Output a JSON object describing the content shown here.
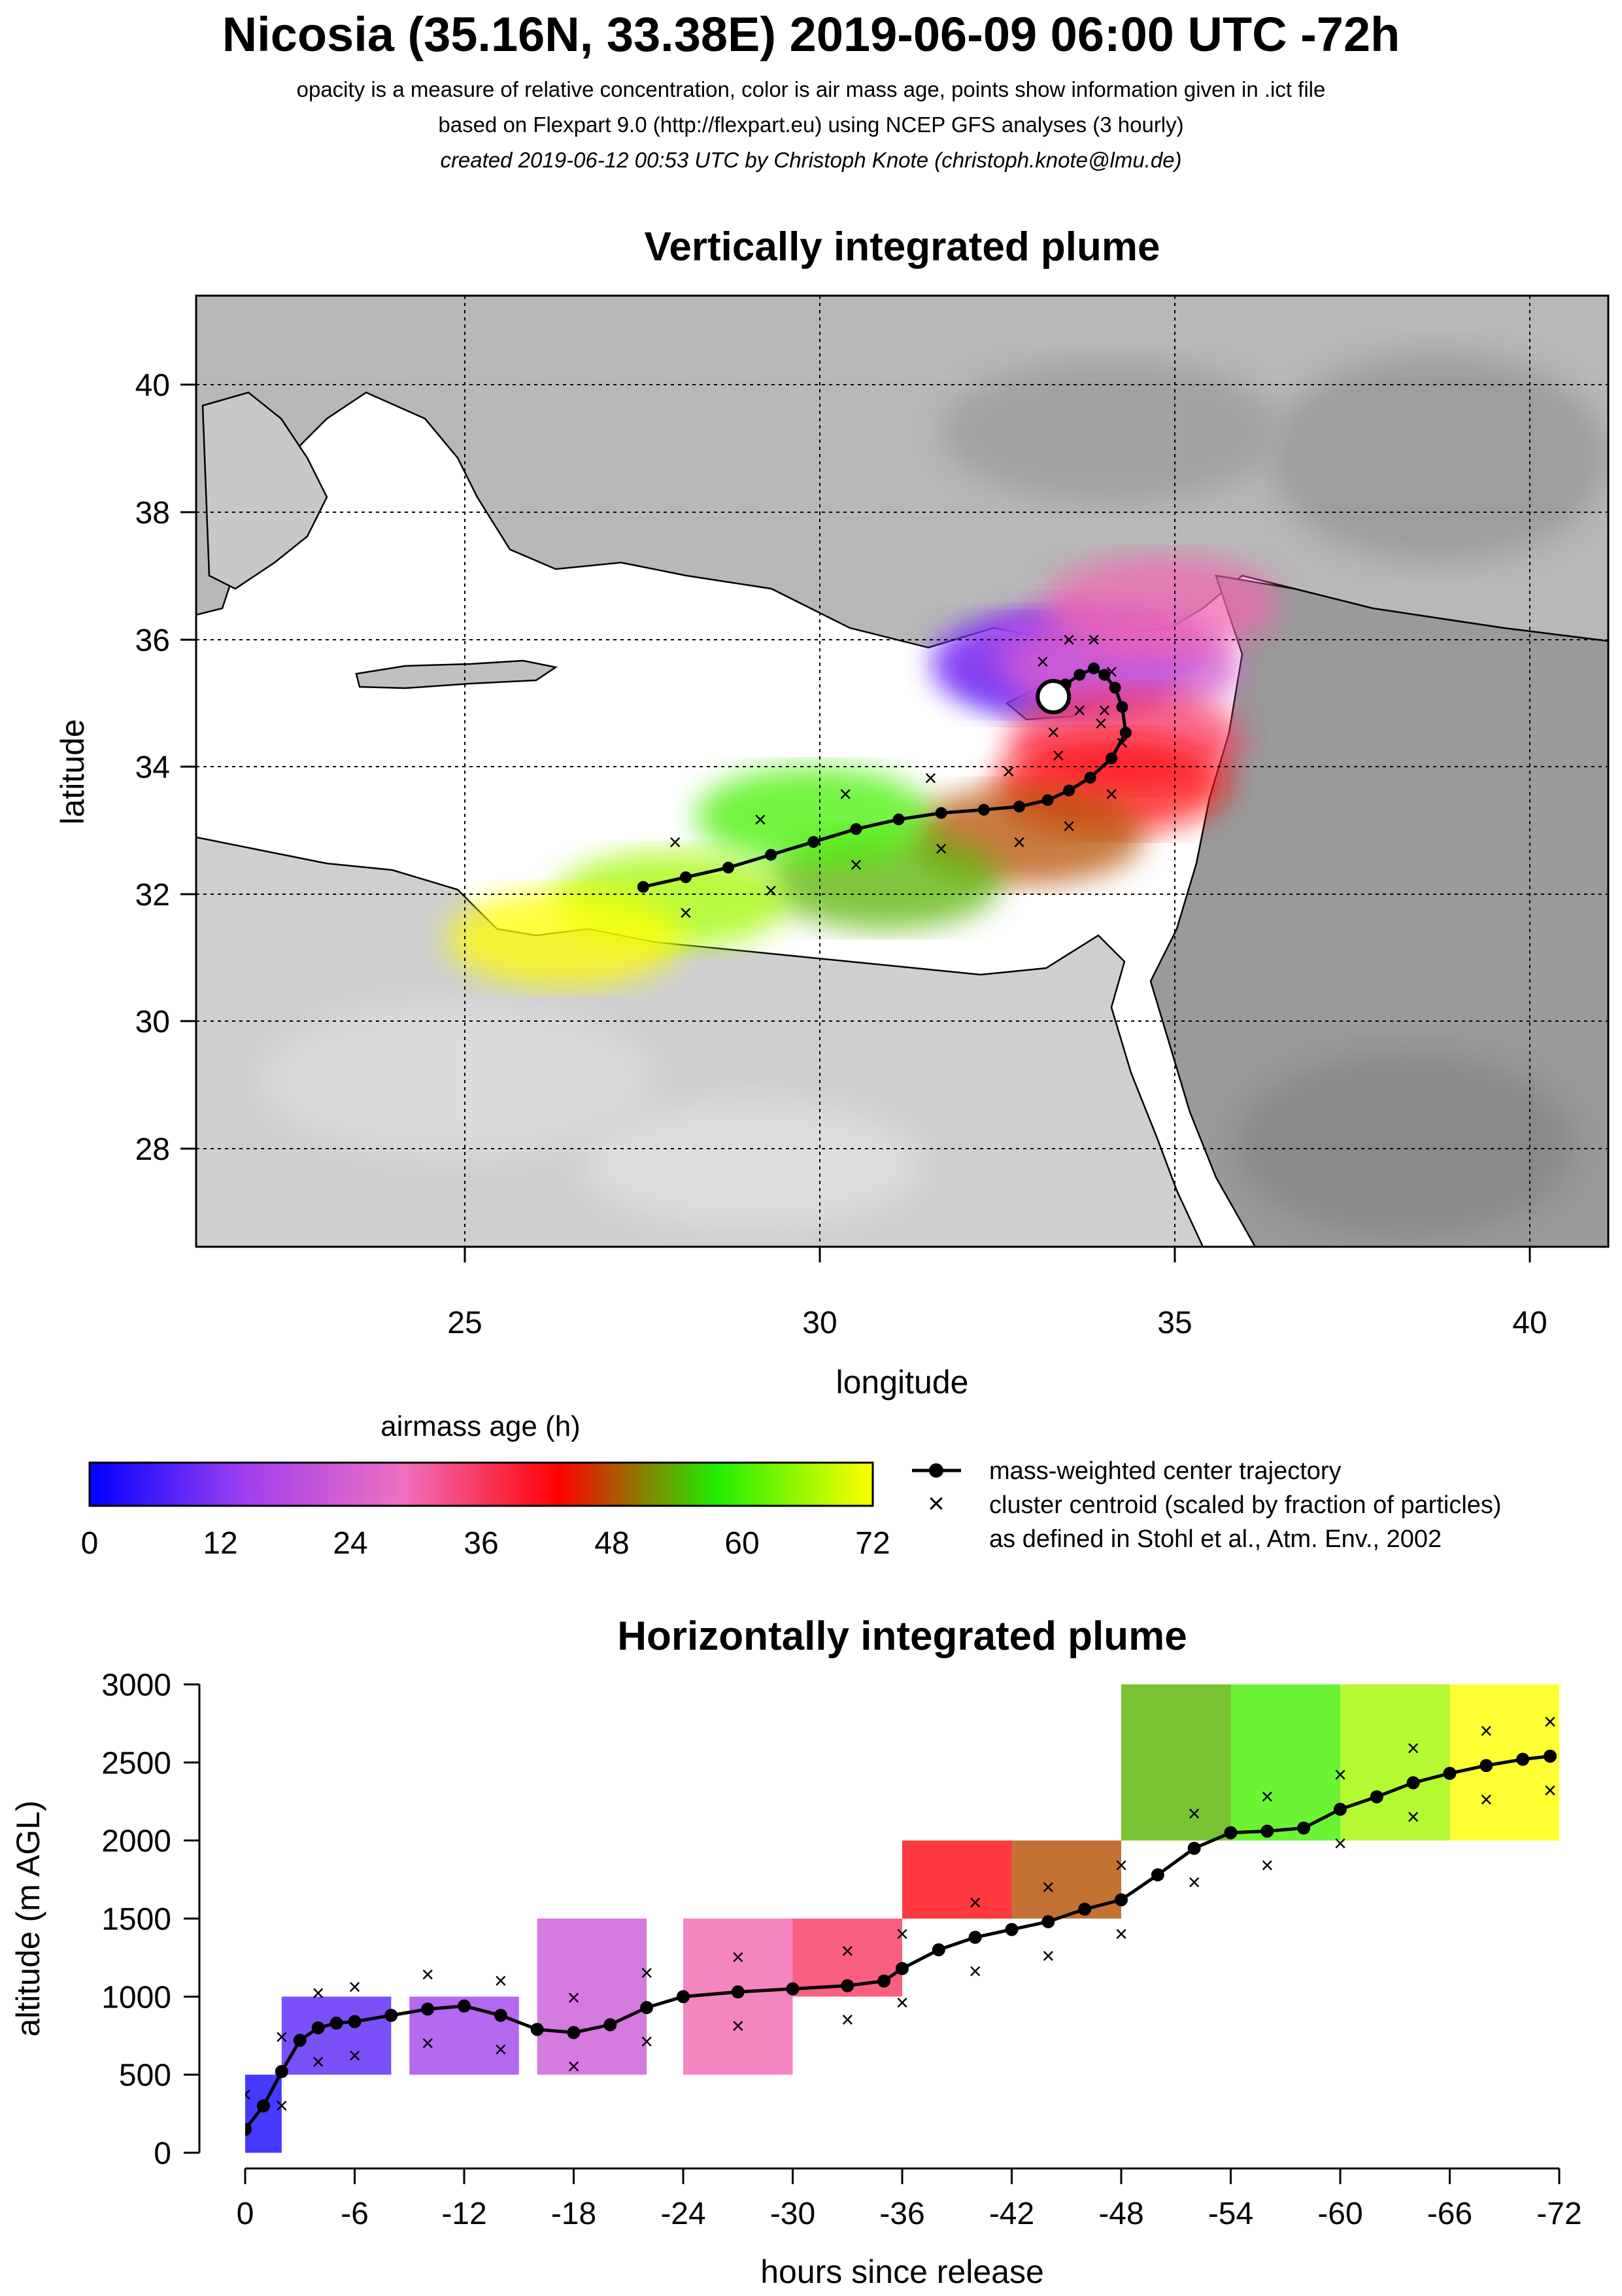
{
  "header": {
    "title": "Nicosia (35.16N, 33.38E) 2019-06-09 06:00 UTC -72h",
    "subtitle_1": "opacity is a measure of relative concentration, color is air mass age, points show information given in .ict file",
    "subtitle_2": "based on Flexpart 9.0 (http://flexpart.eu) using NCEP GFS analyses (3 hourly)",
    "subtitle_3": "created 2019-06-12 00:53 UTC by Christoph Knote (christoph.knote@lmu.de)"
  },
  "colors": {
    "sea": "#ffffff",
    "land_light": "#c4c4c4",
    "land_dark": "#8a8a8a",
    "coastline": "#000000",
    "age_ramp": [
      "#0000ff",
      "#a040f0",
      "#f070c0",
      "#ff0000",
      "#20ee00",
      "#ffff00"
    ]
  },
  "chart_data": [
    {
      "type": "heatmap",
      "title": "Vertically integrated plume",
      "xlabel": "longitude",
      "ylabel": "latitude",
      "xlim": [
        21.3,
        41.2
      ],
      "ylim": [
        26.6,
        41.4
      ],
      "xticks": [
        25,
        30,
        35,
        40
      ],
      "yticks": [
        28,
        30,
        32,
        34,
        36,
        38,
        40
      ],
      "grid": true,
      "release_point": {
        "lon": 33.38,
        "lat": 35.16
      },
      "center_trajectory": {
        "name": "mass-weighted center trajectory",
        "lon": [
          33.38,
          33.55,
          33.75,
          33.95,
          34.1,
          34.25,
          34.35,
          34.4,
          34.2,
          33.9,
          33.6,
          33.3,
          32.9,
          32.4,
          31.8,
          31.2,
          30.6,
          30.0,
          29.4,
          28.8,
          28.2,
          27.6
        ],
        "lat": [
          35.16,
          35.35,
          35.5,
          35.6,
          35.5,
          35.3,
          35.0,
          34.6,
          34.2,
          33.9,
          33.7,
          33.55,
          33.45,
          33.4,
          33.35,
          33.25,
          33.1,
          32.9,
          32.7,
          32.5,
          32.35,
          32.2
        ]
      },
      "plume": [
        {
          "age": 6,
          "lon": 33.5,
          "lat": 35.6
        },
        {
          "age": 12,
          "lon": 33.3,
          "lat": 35.7
        },
        {
          "age": 18,
          "lon": 34.0,
          "lat": 35.9
        },
        {
          "age": 24,
          "lon": 34.4,
          "lat": 35.6
        },
        {
          "age": 30,
          "lon": 34.9,
          "lat": 36.6
        },
        {
          "age": 36,
          "lon": 34.4,
          "lat": 34.5
        },
        {
          "age": 42,
          "lon": 34.2,
          "lat": 33.8
        },
        {
          "age": 48,
          "lon": 33.0,
          "lat": 33.0
        },
        {
          "age": 54,
          "lon": 31.0,
          "lat": 32.3
        },
        {
          "age": 60,
          "lon": 30.0,
          "lat": 33.3
        },
        {
          "age": 66,
          "lon": 28.0,
          "lat": 32.0
        },
        {
          "age": 72,
          "lon": 26.5,
          "lat": 31.4
        }
      ]
    },
    {
      "type": "heatmap",
      "title": "Horizontally integrated plume",
      "xlabel": "hours since release",
      "ylabel": "altitude (m AGL)",
      "xlim": [
        0,
        -72
      ],
      "ylim": [
        0,
        3000
      ],
      "xticks": [
        "0",
        "-6",
        "-12",
        "-18",
        "-24",
        "-30",
        "-36",
        "-42",
        "-48",
        "-54",
        "-60",
        "-66",
        "-72"
      ],
      "yticks": [
        "0",
        "500",
        "1000",
        "1500",
        "2000",
        "2500",
        "3000"
      ],
      "center_trajectory": {
        "name": "mass-weighted center trajectory",
        "x": [
          0,
          -1,
          -2,
          -3,
          -4,
          -5,
          -6,
          -8,
          -10,
          -12,
          -14,
          -16,
          -18,
          -20,
          -22,
          -24,
          -27,
          -30,
          -33,
          -35,
          -36,
          -38,
          -40,
          -42,
          -44,
          -46,
          -48,
          -50,
          -52,
          -54,
          -56,
          -58,
          -60,
          -62,
          -64,
          -66,
          -68,
          -70,
          -71.5
        ],
        "y": [
          150,
          300,
          520,
          720,
          800,
          830,
          840,
          880,
          920,
          940,
          880,
          790,
          770,
          820,
          930,
          1000,
          1030,
          1050,
          1070,
          1100,
          1180,
          1300,
          1380,
          1430,
          1480,
          1560,
          1620,
          1780,
          1950,
          2050,
          2060,
          2080,
          2200,
          2280,
          2370,
          2430,
          2480,
          2520,
          2540
        ]
      },
      "bands": [
        {
          "age": 2,
          "from": 0,
          "to": 500
        },
        {
          "age": 8,
          "from": 500,
          "to": 1000
        },
        {
          "age": 15,
          "from": 500,
          "to": 1000
        },
        {
          "age": 22,
          "from": 500,
          "to": 1500
        },
        {
          "age": 30,
          "from": 500,
          "to": 1500
        },
        {
          "age": 36,
          "from": 1000,
          "to": 1500
        },
        {
          "age": 42,
          "from": 1500,
          "to": 2000
        },
        {
          "age": 48,
          "from": 1500,
          "to": 2000
        },
        {
          "age": 54,
          "from": 2000,
          "to": 3000
        },
        {
          "age": 60,
          "from": 2000,
          "to": 3000
        },
        {
          "age": 66,
          "from": 2000,
          "to": 3000
        },
        {
          "age": 72,
          "from": 2000,
          "to": 3000
        }
      ]
    }
  ],
  "colorbar": {
    "title": "airmass age (h)",
    "min": 0,
    "max": 72,
    "ticks": [
      "0",
      "12",
      "24",
      "36",
      "48",
      "60",
      "72"
    ]
  },
  "legend": {
    "center_trajectory": "mass-weighted center trajectory",
    "cluster_line_1": "cluster centroid (scaled by fraction of particles)",
    "cluster_line_2": "as defined in Stohl et al., Atm. Env., 2002"
  }
}
